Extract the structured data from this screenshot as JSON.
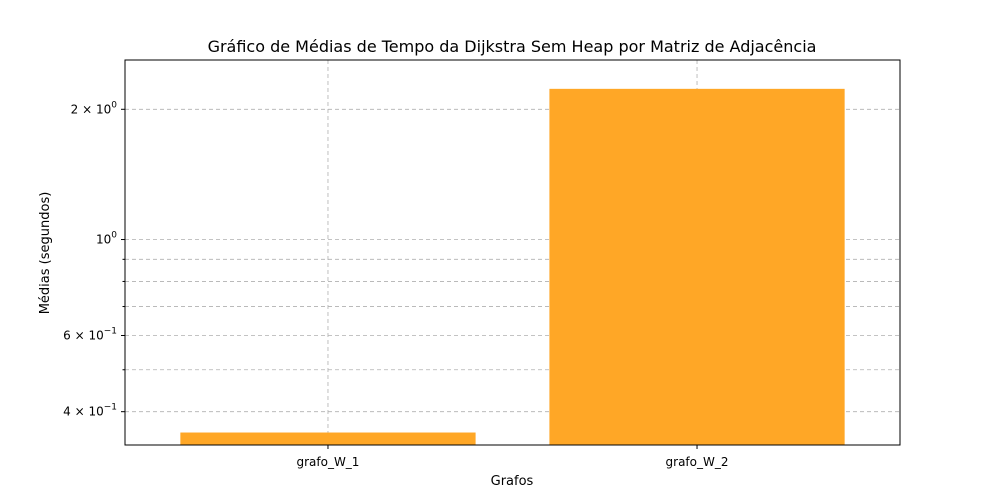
{
  "chart_data": {
    "type": "bar",
    "title": "Gráfico de Médias de Tempo da Dijkstra Sem Heap por Matriz de Adjacência",
    "xlabel": "Grafos",
    "ylabel": "Médias (segundos)",
    "yscale": "log",
    "ylim": [
      0.335,
      2.6
    ],
    "categories": [
      "grafo_W_1",
      "grafo_W_2"
    ],
    "values": [
      0.358,
      2.23
    ],
    "bar_color": "#ffa726",
    "grid": true,
    "major_ticks": [
      {
        "value": 0.4,
        "mant": "4",
        "exp": "−1"
      },
      {
        "value": 0.6,
        "mant": "6",
        "exp": "−1"
      },
      {
        "value": 1,
        "mant": "",
        "exp": "0"
      },
      {
        "value": 2,
        "mant": "2",
        "exp": "0"
      }
    ],
    "minor_ticks": [
      0.5,
      0.7,
      0.8,
      0.9
    ]
  }
}
